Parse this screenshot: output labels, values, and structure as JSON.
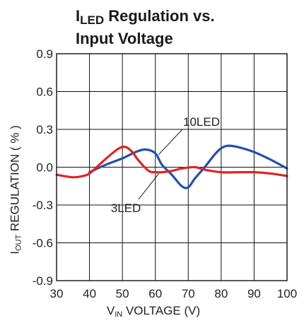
{
  "chart_data": {
    "type": "line",
    "title": {
      "line1_main": "I",
      "line1_sub": "LED",
      "line1_rest": " Regulation vs.",
      "line2": "Input Voltage"
    },
    "xlabel": {
      "main": "V",
      "sub": "IN",
      "rest": " VOLTAGE (V)"
    },
    "ylabel": {
      "main": "I",
      "sub": "OUT",
      "rest": " REGULATION ( % )"
    },
    "xlim": [
      30,
      100
    ],
    "ylim": [
      -0.9,
      0.9
    ],
    "x_ticks": [
      30,
      40,
      50,
      60,
      70,
      80,
      90,
      100
    ],
    "y_ticks": [
      0.9,
      0.6,
      0.3,
      0.0,
      -0.3,
      -0.6,
      -0.9
    ],
    "y_tick_labels": [
      "0.9",
      "0.6",
      "0.3",
      "0.0",
      "-0.3",
      "-0.6",
      "-0.9"
    ],
    "grid": true,
    "series": [
      {
        "name": "10LED",
        "color": "#2450a8",
        "x": [
          40,
          45,
          50,
          54,
          57,
          60,
          62,
          65,
          68,
          70,
          72,
          75,
          78,
          80,
          82,
          85,
          90,
          95,
          100
        ],
        "y": [
          -0.04,
          0.02,
          0.07,
          0.12,
          0.14,
          0.11,
          0.02,
          -0.06,
          -0.15,
          -0.16,
          -0.09,
          0.0,
          0.1,
          0.15,
          0.17,
          0.16,
          0.12,
          0.06,
          -0.01
        ]
      },
      {
        "name": "3LED",
        "color": "#e02323",
        "x": [
          30,
          35,
          38,
          40,
          43,
          46,
          49,
          51,
          53,
          55,
          58,
          60,
          62,
          65,
          68,
          72,
          75,
          80,
          85,
          90,
          95,
          100
        ],
        "y": [
          -0.06,
          -0.08,
          -0.07,
          -0.05,
          0.02,
          0.09,
          0.15,
          0.16,
          0.12,
          0.05,
          -0.03,
          -0.04,
          -0.04,
          -0.03,
          -0.01,
          0.0,
          -0.02,
          -0.04,
          -0.04,
          -0.04,
          -0.05,
          -0.07
        ]
      }
    ],
    "annotations": [
      {
        "text": "10LED",
        "points_to": [
          61,
          0.1
        ]
      },
      {
        "text": "3LED",
        "points_to": [
          61,
          -0.03
        ]
      }
    ]
  }
}
